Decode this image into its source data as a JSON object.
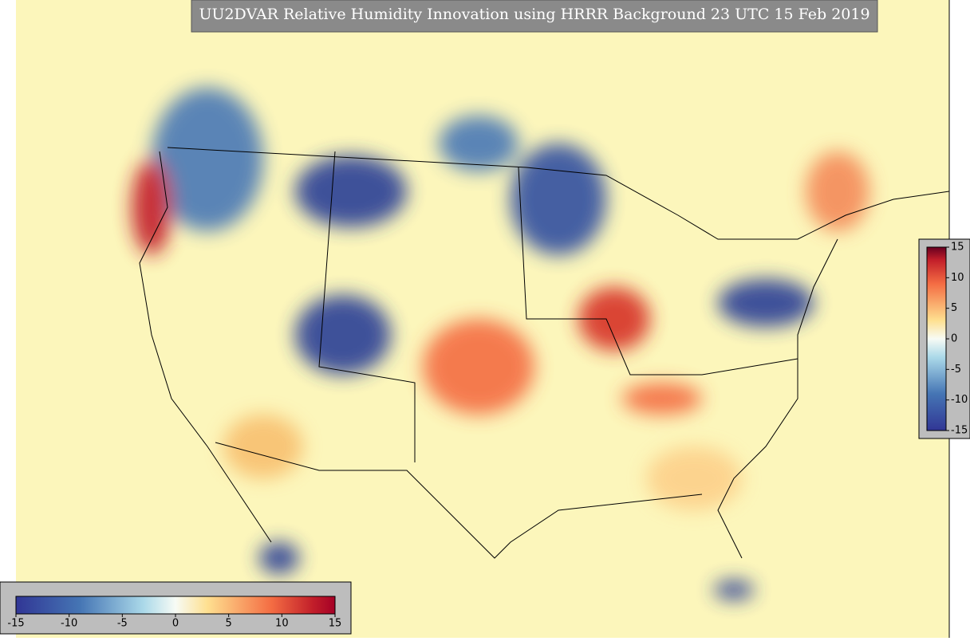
{
  "title": "UU2DVAR Relative Humidity Innovation using HRRR Background 23 UTC 15 Feb 2019",
  "colorbar": {
    "lim": [
      -15,
      15
    ],
    "ticks": [
      -15,
      -10,
      -5,
      0,
      5,
      10,
      15
    ]
  }
}
